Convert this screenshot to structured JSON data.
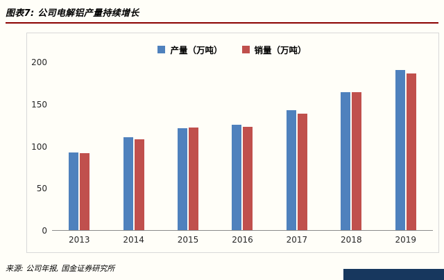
{
  "header": {
    "title": "图表7: 公司电解铝产量持续增长"
  },
  "footer": {
    "source": "来源: 公司年报, 国金证券研究所"
  },
  "colors": {
    "title_rule": "#8b0000",
    "production_bar": "#4f81bd",
    "sales_bar": "#c0504d",
    "brand_bar": "#17375e",
    "background": "#fffef8"
  },
  "chart_data": {
    "type": "bar",
    "title": "公司电解铝产量持续增长",
    "categories": [
      "2013",
      "2014",
      "2015",
      "2016",
      "2017",
      "2018",
      "2019"
    ],
    "series": [
      {
        "id": "production",
        "name": "产量（万吨）",
        "color": "#4f81bd",
        "values": [
          92,
          110,
          121,
          125,
          142,
          164,
          190
        ]
      },
      {
        "id": "sales",
        "name": "销量（万吨）",
        "color": "#c0504d",
        "values": [
          91,
          108,
          122,
          123,
          138,
          164,
          186
        ]
      }
    ],
    "xlabel": "",
    "ylabel": "",
    "ylim": [
      0,
      200
    ],
    "yticks": [
      0,
      50,
      100,
      150,
      200
    ],
    "grid": false,
    "legend_position": "top"
  }
}
